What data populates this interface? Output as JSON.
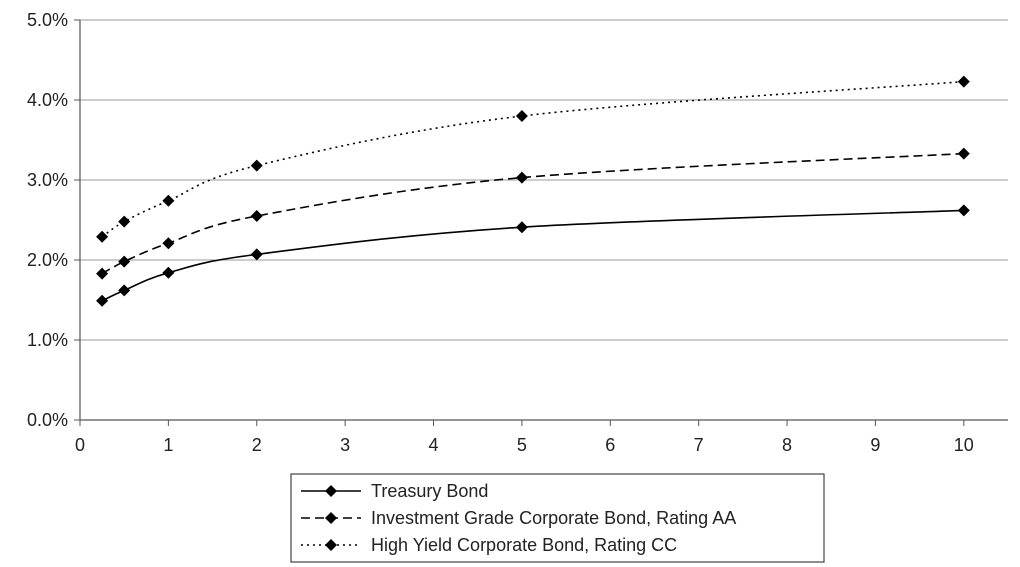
{
  "chart_data": {
    "type": "line",
    "title": "",
    "xlabel": "",
    "ylabel": "",
    "xlim": [
      0,
      10.5
    ],
    "ylim": [
      0,
      5
    ],
    "x_ticks": [
      "0",
      "1",
      "2",
      "3",
      "4",
      "5",
      "6",
      "7",
      "8",
      "9",
      "10"
    ],
    "y_ticks": [
      "0.0%",
      "1.0%",
      "2.0%",
      "3.0%",
      "4.0%",
      "5.0%"
    ],
    "grid": "horizontal",
    "legend_position": "bottom-center",
    "x": [
      0.25,
      0.5,
      1,
      2,
      5,
      10
    ],
    "series": [
      {
        "name": "Treasury Bond",
        "style": "solid",
        "values": [
          1.49,
          1.62,
          1.84,
          2.07,
          2.41,
          2.62
        ]
      },
      {
        "name": "Investment Grade Corporate Bond, Rating AA",
        "style": "dashed",
        "values": [
          1.83,
          1.98,
          2.21,
          2.55,
          3.03,
          3.33
        ]
      },
      {
        "name": "High Yield Corporate Bond, Rating CC",
        "style": "dotted",
        "values": [
          2.29,
          2.48,
          2.74,
          3.18,
          3.8,
          4.23
        ]
      }
    ],
    "colors": {
      "line": "#000000",
      "grid": "#9a9a9a",
      "axis": "#555555"
    }
  }
}
